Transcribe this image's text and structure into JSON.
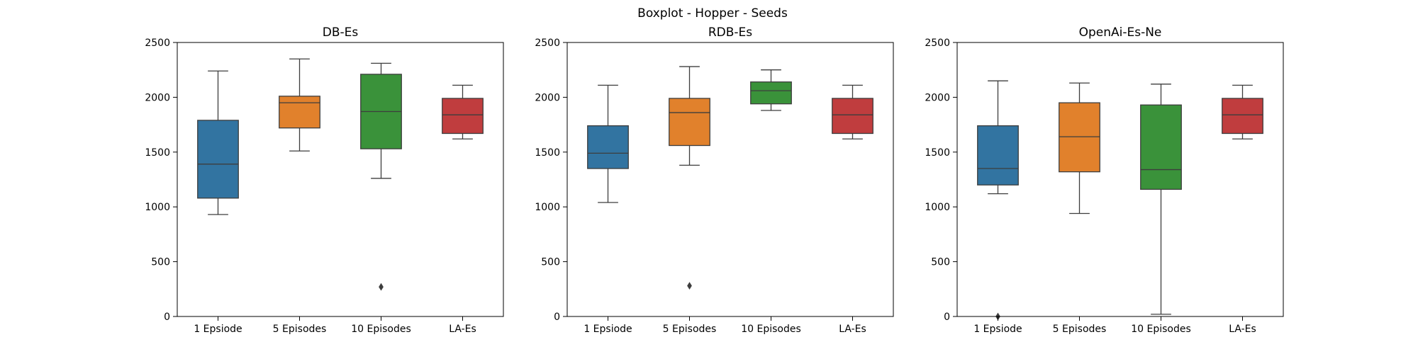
{
  "figure": {
    "title": "Boxplot - Hopper - Seeds"
  },
  "colors": {
    "c1": "#3274a1",
    "c2": "#e1812c",
    "c3": "#3a923a",
    "c4": "#c03d3e",
    "line": "#3d3d3d"
  },
  "chart_data": [
    {
      "type": "box",
      "title": "DB-Es",
      "categories": [
        "1 Epsiode",
        "5 Episodes",
        "10 Episodes",
        "LA-Es"
      ],
      "ylim": [
        0,
        2500
      ],
      "yticks": [
        0,
        500,
        1000,
        1500,
        2000,
        2500
      ],
      "boxes": [
        {
          "whislo": 930,
          "q1": 1080,
          "med": 1390,
          "q3": 1790,
          "whishi": 2240,
          "fliers": []
        },
        {
          "whislo": 1510,
          "q1": 1720,
          "med": 1950,
          "q3": 2010,
          "whishi": 2350,
          "fliers": []
        },
        {
          "whislo": 1260,
          "q1": 1530,
          "med": 1870,
          "q3": 2210,
          "whishi": 2310,
          "fliers": [
            270
          ]
        },
        {
          "whislo": 1620,
          "q1": 1670,
          "med": 1840,
          "q3": 1990,
          "whishi": 2110,
          "fliers": []
        }
      ]
    },
    {
      "type": "box",
      "title": "RDB-Es",
      "categories": [
        "1 Epsiode",
        "5 Episodes",
        "10 Episodes",
        "LA-Es"
      ],
      "ylim": [
        0,
        2500
      ],
      "yticks": [
        0,
        500,
        1000,
        1500,
        2000,
        2500
      ],
      "boxes": [
        {
          "whislo": 1040,
          "q1": 1350,
          "med": 1490,
          "q3": 1740,
          "whishi": 2110,
          "fliers": []
        },
        {
          "whislo": 1380,
          "q1": 1560,
          "med": 1860,
          "q3": 1990,
          "whishi": 2280,
          "fliers": [
            280
          ]
        },
        {
          "whislo": 1880,
          "q1": 1940,
          "med": 2060,
          "q3": 2140,
          "whishi": 2250,
          "fliers": []
        },
        {
          "whislo": 1620,
          "q1": 1670,
          "med": 1840,
          "q3": 1990,
          "whishi": 2110,
          "fliers": []
        }
      ]
    },
    {
      "type": "box",
      "title": "OpenAi-Es-Ne",
      "categories": [
        "1 Epsiode",
        "5 Episodes",
        "10 Episodes",
        "LA-Es"
      ],
      "ylim": [
        0,
        2500
      ],
      "yticks": [
        0,
        500,
        1000,
        1500,
        2000,
        2500
      ],
      "boxes": [
        {
          "whislo": 1120,
          "q1": 1200,
          "med": 1350,
          "q3": 1740,
          "whishi": 2150,
          "fliers": [
            0
          ]
        },
        {
          "whislo": 940,
          "q1": 1320,
          "med": 1640,
          "q3": 1950,
          "whishi": 2130,
          "fliers": []
        },
        {
          "whislo": 20,
          "q1": 1160,
          "med": 1340,
          "q3": 1930,
          "whishi": 2120,
          "fliers": []
        },
        {
          "whislo": 1620,
          "q1": 1670,
          "med": 1840,
          "q3": 1990,
          "whishi": 2110,
          "fliers": []
        }
      ]
    }
  ]
}
